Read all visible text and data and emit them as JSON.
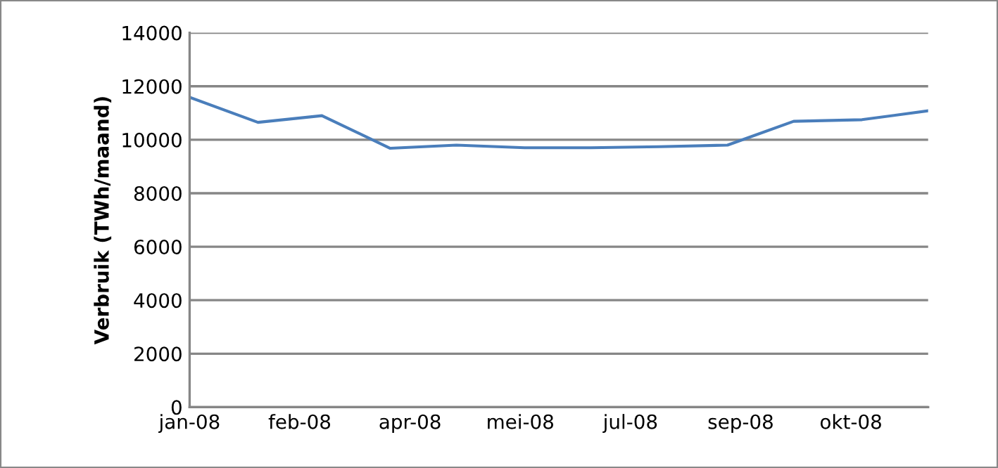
{
  "chart_data": {
    "type": "line",
    "ylabel": "Verbruik (TWh/maand)",
    "x": [
      "2008-01-01",
      "2008-02-01",
      "2008-03-01",
      "2008-04-01",
      "2008-05-01",
      "2008-06-01",
      "2008-07-01",
      "2008-08-01",
      "2008-09-01",
      "2008-10-01",
      "2008-11-01",
      "2008-12-01"
    ],
    "series": [
      {
        "color": "#4a7ebb",
        "values": [
          11590,
          10650,
          10900,
          9680,
          9800,
          9700,
          9700,
          9740,
          9800,
          10690,
          10750,
          11080
        ]
      }
    ],
    "xlim": [
      "2008-01-01",
      "2008-12-01"
    ],
    "xticks": [
      {
        "value": "2008-01-01",
        "label": "jan-08"
      },
      {
        "value": "2008-02-20",
        "label": "feb-08"
      },
      {
        "value": "2008-04-10",
        "label": "apr-08"
      },
      {
        "value": "2008-05-30",
        "label": "mei-08"
      },
      {
        "value": "2008-07-19",
        "label": "jul-08"
      },
      {
        "value": "2008-09-07",
        "label": "sep-08"
      },
      {
        "value": "2008-10-27",
        "label": "okt-08"
      }
    ],
    "ylim": [
      0,
      14000
    ],
    "yticks": [
      0,
      2000,
      4000,
      6000,
      8000,
      10000,
      12000,
      14000
    ],
    "grid": "y",
    "legend": false,
    "marker": "none",
    "line_style": "solid"
  }
}
